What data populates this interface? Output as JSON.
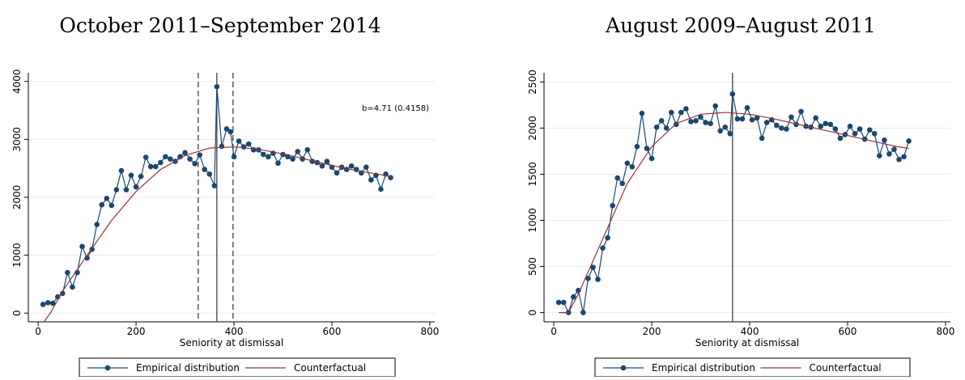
{
  "chart_data": [
    {
      "type": "line",
      "title": "October 2011–September 2014",
      "x_label": "Seniority at dismissal",
      "annotation": "b=4.71 (0.4158)",
      "xlim": [
        -20,
        810
      ],
      "xticks": [
        0,
        200,
        400,
        600,
        800
      ],
      "ylim": [
        -150,
        4150
      ],
      "yticks": [
        0,
        1000,
        2000,
        3000,
        4000
      ],
      "grid": true,
      "legend": "bottom",
      "vlines": [
        {
          "x": 327,
          "style": "dashed"
        },
        {
          "x": 365,
          "style": "solid"
        },
        {
          "x": 398,
          "style": "dashed"
        }
      ],
      "series": [
        {
          "name": "Empirical distribution",
          "color": "#1a476f",
          "markers": true,
          "x": [
            10,
            20,
            30,
            40,
            50,
            60,
            70,
            80,
            90,
            100,
            110,
            120,
            130,
            140,
            150,
            160,
            170,
            180,
            190,
            200,
            210,
            220,
            230,
            240,
            250,
            260,
            270,
            280,
            290,
            300,
            310,
            320,
            330,
            340,
            350,
            360,
            365,
            375,
            385,
            393,
            400,
            410,
            420,
            430,
            440,
            450,
            460,
            470,
            480,
            490,
            500,
            510,
            520,
            530,
            540,
            550,
            560,
            570,
            580,
            590,
            600,
            610,
            620,
            630,
            640,
            650,
            660,
            670,
            680,
            690,
            700,
            710,
            720
          ],
          "values": [
            150,
            180,
            170,
            280,
            340,
            700,
            450,
            700,
            1150,
            950,
            1100,
            1530,
            1870,
            1980,
            1860,
            2130,
            2460,
            2130,
            2380,
            2180,
            2360,
            2690,
            2530,
            2530,
            2600,
            2700,
            2660,
            2620,
            2700,
            2770,
            2660,
            2580,
            2730,
            2480,
            2400,
            2200,
            3910,
            2880,
            3180,
            3130,
            2700,
            2970,
            2870,
            2920,
            2820,
            2820,
            2740,
            2700,
            2760,
            2590,
            2740,
            2700,
            2660,
            2790,
            2660,
            2820,
            2620,
            2600,
            2540,
            2620,
            2520,
            2420,
            2520,
            2480,
            2540,
            2480,
            2420,
            2520,
            2300,
            2380,
            2140,
            2400,
            2340
          ]
        },
        {
          "name": "Counterfactual",
          "color": "#90353b",
          "markers": false,
          "x": [
            13,
            25,
            50,
            100,
            150,
            200,
            250,
            300,
            350,
            400,
            450,
            500,
            550,
            600,
            650,
            700,
            725
          ],
          "values": [
            -140,
            0,
            380,
            1000,
            1600,
            2100,
            2480,
            2720,
            2850,
            2870,
            2830,
            2750,
            2650,
            2550,
            2460,
            2390,
            2350
          ]
        }
      ]
    },
    {
      "type": "line",
      "title": "August 2009–August 2011",
      "x_label": "Seniority at dismissal",
      "xlim": [
        -20,
        810
      ],
      "xticks": [
        0,
        200,
        400,
        600,
        800
      ],
      "ylim": [
        -100,
        2600
      ],
      "yticks": [
        0,
        500,
        1000,
        1500,
        2000,
        2500
      ],
      "grid": true,
      "legend": "bottom",
      "vlines": [
        {
          "x": 365,
          "style": "solid"
        }
      ],
      "series": [
        {
          "name": "Empirical distribution",
          "color": "#1a476f",
          "markers": true,
          "x": [
            10,
            20,
            30,
            40,
            50,
            60,
            70,
            80,
            90,
            100,
            110,
            120,
            130,
            140,
            150,
            160,
            170,
            180,
            190,
            200,
            210,
            220,
            230,
            240,
            250,
            260,
            270,
            280,
            290,
            300,
            310,
            320,
            330,
            340,
            350,
            360,
            365,
            375,
            385,
            395,
            405,
            415,
            425,
            435,
            445,
            455,
            465,
            475,
            485,
            495,
            505,
            515,
            525,
            535,
            545,
            555,
            565,
            575,
            585,
            595,
            605,
            615,
            625,
            635,
            645,
            655,
            665,
            675,
            685,
            695,
            705,
            715,
            725
          ],
          "values": [
            110,
            110,
            0,
            170,
            240,
            0,
            370,
            490,
            360,
            700,
            810,
            1160,
            1460,
            1400,
            1620,
            1580,
            1800,
            2160,
            1780,
            1670,
            2010,
            2080,
            2000,
            2170,
            2040,
            2170,
            2210,
            2070,
            2080,
            2120,
            2060,
            2050,
            2240,
            1970,
            2010,
            1940,
            2370,
            2100,
            2100,
            2220,
            2090,
            2110,
            1890,
            2060,
            2090,
            2030,
            2000,
            1990,
            2120,
            2040,
            2180,
            2020,
            2010,
            2110,
            2020,
            2050,
            2040,
            1990,
            1890,
            1930,
            2020,
            1940,
            1990,
            1880,
            1980,
            1940,
            1700,
            1870,
            1720,
            1770,
            1660,
            1690,
            1860
          ]
        },
        {
          "name": "Counterfactual",
          "color": "#90353b",
          "markers": false,
          "x": [
            10,
            30,
            50,
            100,
            150,
            200,
            250,
            300,
            350,
            400,
            450,
            500,
            550,
            600,
            650,
            700,
            725
          ],
          "values": [
            0,
            0,
            200,
            800,
            1400,
            1800,
            2050,
            2150,
            2170,
            2150,
            2100,
            2040,
            1980,
            1920,
            1860,
            1800,
            1780
          ]
        }
      ]
    }
  ]
}
